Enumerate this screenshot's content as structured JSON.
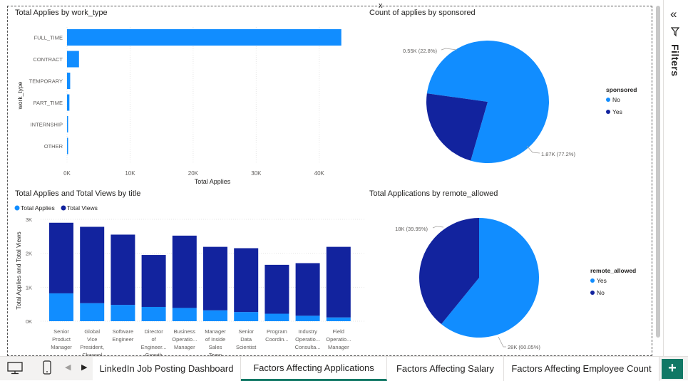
{
  "tabs": {
    "items": [
      {
        "label": "LinkedIn Job Posting Dashboard"
      },
      {
        "label": "Factors Affecting Applications"
      },
      {
        "label": "Factors Affecting Salary"
      },
      {
        "label": "Factors Affecting Employee Count"
      }
    ],
    "close_glyph": "x",
    "add_glyph": "+"
  },
  "filters": {
    "label": "Filters",
    "collapse_glyph": "«"
  },
  "nav": {
    "prev_glyph": "◀",
    "next_glyph": "▶"
  },
  "colors": {
    "light": "#118DFF",
    "dark": "#12239E",
    "accent": "#117865"
  },
  "icons": [
    "desktop-icon",
    "phone-icon",
    "filter-icon",
    "collapse-icon"
  ],
  "chart_data": [
    {
      "type": "bar",
      "orientation": "horizontal",
      "title": "Total Applies by work_type",
      "xlabel": "Total Applies",
      "ylabel": "work_type",
      "categories": [
        "FULL_TIME",
        "CONTRACT",
        "TEMPORARY",
        "PART_TIME",
        "INTERNSHIP",
        "OTHER"
      ],
      "values": [
        43500,
        1900,
        500,
        380,
        150,
        100
      ],
      "xticks": [
        "0K",
        "10K",
        "20K",
        "30K",
        "40K"
      ],
      "xlim": [
        0,
        45000
      ],
      "grid": true
    },
    {
      "type": "pie",
      "title": "Count of applies by sponsored",
      "legend_title": "sponsored",
      "legend_position": "right",
      "slices": [
        {
          "label": "No",
          "value": 1870,
          "data_label": "1.87K (77.2%)"
        },
        {
          "label": "Yes",
          "value": 550,
          "data_label": "0.55K (22.8%)"
        }
      ]
    },
    {
      "type": "bar",
      "stacked": true,
      "title": "Total Applies and Total Views by title",
      "ylabel": "Total Applies and Total Views",
      "legend_position": "top-left",
      "categories": [
        [
          "Senior",
          "Product",
          "Manager"
        ],
        [
          "Global",
          "Vice",
          "President,",
          "Channel"
        ],
        [
          "Software",
          "Engineer"
        ],
        [
          "Director",
          "of",
          "Engineer...",
          "Growth"
        ],
        [
          "Business",
          "Operatio...",
          "Manager"
        ],
        [
          "Manager",
          "of Inside",
          "Sales",
          "Team"
        ],
        [
          "Senior",
          "Data",
          "Scientist"
        ],
        [
          "Program",
          "Coordin..."
        ],
        [
          "Industry",
          "Operatio...",
          "Consulta..."
        ],
        [
          "Field",
          "Operatio...",
          "Manager"
        ]
      ],
      "series": [
        {
          "name": "Total Applies",
          "values": [
            820,
            530,
            480,
            420,
            390,
            320,
            270,
            220,
            160,
            110
          ]
        },
        {
          "name": "Total Views",
          "values": [
            2080,
            2250,
            2070,
            1530,
            2130,
            1870,
            1880,
            1440,
            1550,
            2080
          ]
        }
      ],
      "yticks": [
        "0K",
        "1K",
        "2K",
        "3K"
      ],
      "ylim": [
        0,
        3000
      ],
      "grid": true
    },
    {
      "type": "pie",
      "title": "Total Applications by remote_allowed",
      "legend_title": "remote_allowed",
      "legend_position": "right",
      "slices": [
        {
          "label": "Yes",
          "value": 28000,
          "data_label": "28K (60.05%)"
        },
        {
          "label": "No",
          "value": 18000,
          "data_label": "18K (39.95%)"
        }
      ]
    }
  ]
}
